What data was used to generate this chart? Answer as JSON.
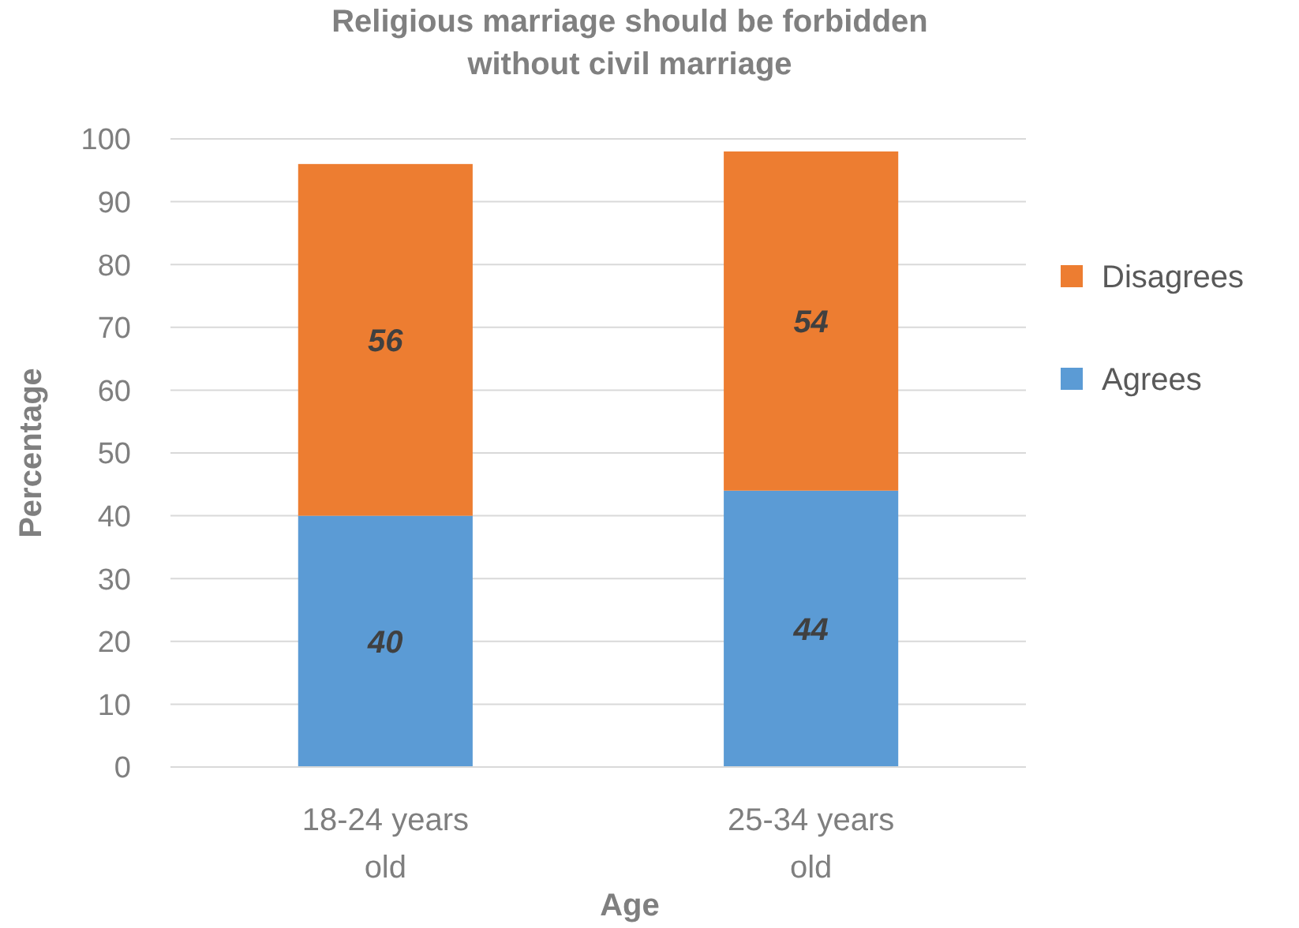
{
  "chart_data": {
    "type": "bar",
    "title": "Religious marriage should be forbidden without civil marriage",
    "xlabel": "Age",
    "ylabel": "Percentage",
    "categories": [
      "18-24 years old",
      "25-34 years old"
    ],
    "series": [
      {
        "name": "Agrees",
        "color": "#5b9bd5",
        "values": [
          40,
          44
        ]
      },
      {
        "name": "Disagrees",
        "color": "#ed7d31",
        "values": [
          56,
          54
        ]
      }
    ],
    "stacked": true,
    "data_labels": true,
    "ylim": [
      0,
      100
    ],
    "yticks": [
      0,
      10,
      20,
      30,
      40,
      50,
      60,
      70,
      80,
      90,
      100
    ],
    "grid": "y",
    "legend": "right"
  }
}
